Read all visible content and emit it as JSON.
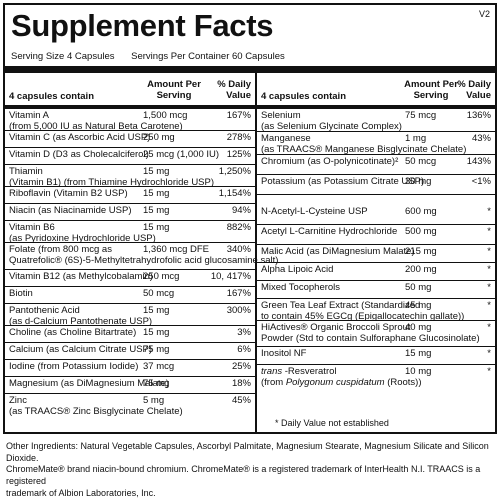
{
  "title": "Supplement Facts",
  "version": "V2",
  "serving_size": "Serving Size  4 Capsules",
  "servings_per_container": "Servings Per Container  60 Capsules",
  "header": {
    "contain": "4 capsules contain",
    "amount_line1": "Amount Per",
    "amount_line2": "Serving",
    "dv_line1": "% Daily",
    "dv_line2": "Value"
  },
  "left_rows": [
    {
      "name": [
        "Vitamin A",
        "(from 5,000 IU as Natural Beta Carotene)"
      ],
      "amount": "1,500 mcg",
      "dv": "167%"
    },
    {
      "name": [
        "Vitamin C (as Ascorbic Acid USP)"
      ],
      "amount": "250 mg",
      "dv": "278%"
    },
    {
      "name": [
        "Vitamin D (D3 as Cholecalciferol)"
      ],
      "amount": "25 mcg (1,000 IU)",
      "dv": "125%"
    },
    {
      "name": [
        "Thiamin",
        "(Vitamin B1) (from Thiamine Hydrochloride USP)"
      ],
      "amount": "15 mg",
      "dv": "1,250%"
    },
    {
      "name": [
        "Riboflavin (Vitamin B2 USP)"
      ],
      "amount": "15 mg",
      "dv": "1,154%"
    },
    {
      "name": [
        "Niacin (as Niacinamide USP)"
      ],
      "amount": "15 mg",
      "dv": "94%"
    },
    {
      "name": [
        "Vitamin B6",
        "(as Pyridoxine Hydrochloride USP)"
      ],
      "amount": "15 mg",
      "dv": "882%"
    },
    {
      "name": [
        "Folate (from 800 mcg as",
        "Quatrefolic® (6S)-5-Methyltetrahydrofolic acid glucosamine salt)"
      ],
      "amount": "1,360 mcg DFE",
      "dv": "340%"
    },
    {
      "name": [
        "Vitamin B12 (as Methylcobalamin)"
      ],
      "amount": "250 mcg",
      "dv": "10, 417%"
    },
    {
      "name": [
        "Biotin"
      ],
      "amount": "50 mcg",
      "dv": "167%"
    },
    {
      "name": [
        "Pantothenic Acid",
        "(as d-Calcium Pantothenate USP)"
      ],
      "amount": "15 mg",
      "dv": "300%"
    },
    {
      "name": [
        "Choline (as Choline Bitartrate)"
      ],
      "amount": "15 mg",
      "dv": "3%"
    },
    {
      "name": [
        "Calcium (as Calcium Citrate USP)"
      ],
      "amount": "75 mg",
      "dv": "6%"
    },
    {
      "name": [
        "Iodine (from Potassium Iodide)"
      ],
      "amount": "37 mcg",
      "dv": "25%"
    },
    {
      "name": [
        "Magnesium (as DiMagnesium Malate)"
      ],
      "amount": "75 mg",
      "dv": "18%"
    },
    {
      "name": [
        "Zinc",
        "(as TRAACS® Zinc Bisglycinate Chelate)"
      ],
      "amount": "5 mg",
      "dv": "45%"
    }
  ],
  "right_rows": [
    {
      "name": [
        "Selenium",
        "(as Selenium Glycinate Complex)"
      ],
      "amount": "75 mcg",
      "dv": "136%"
    },
    {
      "name": [
        "Manganese",
        "(as TRAACS® Manganese Bisglycinate Chelate)"
      ],
      "amount": "1 mg",
      "dv": "43%"
    },
    {
      "name": [
        "Chromium (as O-polynicotinate)²"
      ],
      "amount": "50 mcg",
      "dv": "143%"
    },
    {
      "name": [
        "Potassium (as Potassium Citrate USP)"
      ],
      "amount": "30 mg",
      "dv": "<1%"
    },
    {
      "name": [
        "N-Acetyl-L-Cysteine USP"
      ],
      "amount": "600 mg",
      "dv": "*"
    },
    {
      "name": [
        "Acetyl L-Carnitine Hydrochloride"
      ],
      "amount": "500 mg",
      "dv": "*"
    },
    {
      "name": [
        "Malic Acid (as DiMagnesium Malate)"
      ],
      "amount": "215 mg",
      "dv": "*"
    },
    {
      "name": [
        "Alpha Lipoic Acid"
      ],
      "amount": "200 mg",
      "dv": "*"
    },
    {
      "name": [
        "Mixed Tocopherols"
      ],
      "amount": "50 mg",
      "dv": "*"
    },
    {
      "name": [
        "Green Tea Leaf Extract  (Standardized",
        "to contain 45% EGCg (Epigallocatechin gallate))"
      ],
      "amount": "45 mg",
      "dv": "*"
    },
    {
      "name": [
        "HiActives® Organic Broccoli Sprout",
        "Powder (Std to contain Sulforaphane Glucosinolate)"
      ],
      "amount": "40 mg",
      "dv": "*"
    },
    {
      "name": [
        "Inositol NF"
      ],
      "amount": "15 mg",
      "dv": "*"
    },
    {
      "name": [
        "trans -Resveratrol",
        "(from Polygonum cuspidatum (Roots))"
      ],
      "amount": "10 mg",
      "dv": "*"
    }
  ],
  "footnote": "* Daily Value not established",
  "other_ingredients": [
    "Other Ingredients: Natural Vegetable Capsules, Ascorbyl Palmitate, Magnesium Stearate, Magnesium Silicate and Silicon Dioxide.",
    "ChromeMate® brand niacin-bound chromium. ChromeMate® is a registered trademark of InterHealth N.I. TRAACS is a registered",
    "trademark of Albion Laboratories, Inc."
  ]
}
